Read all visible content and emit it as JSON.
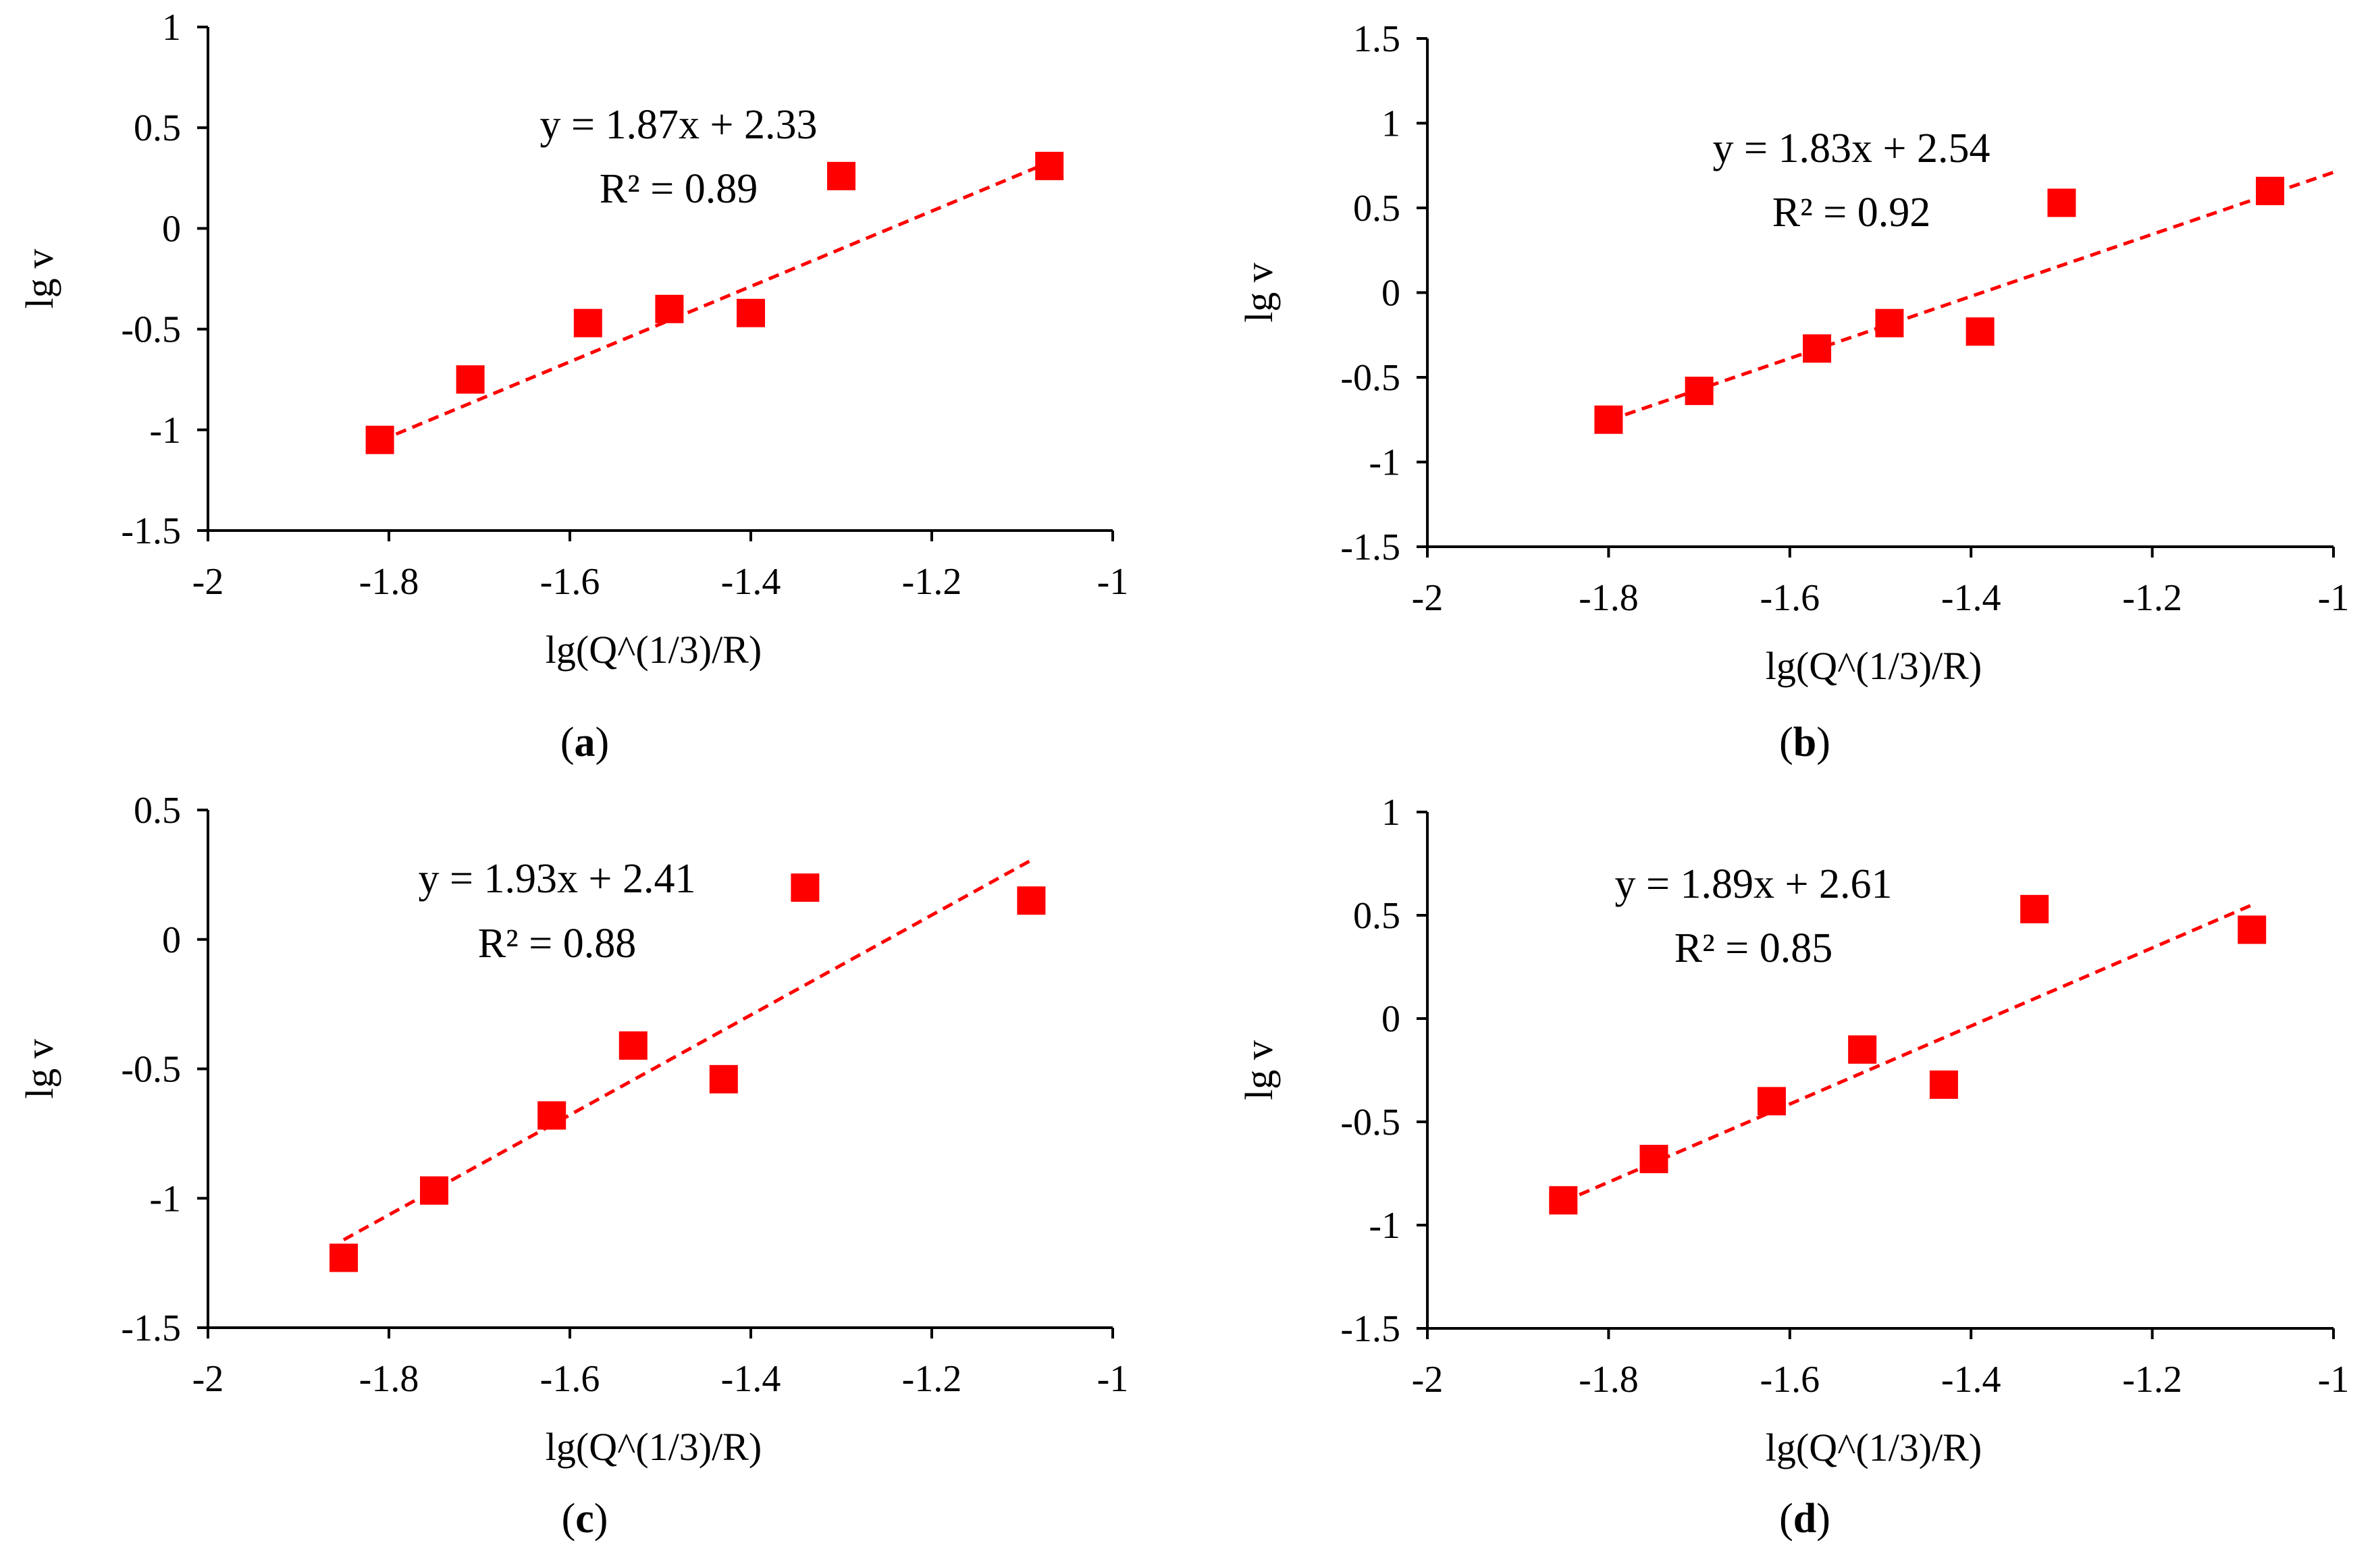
{
  "chart_data": [
    {
      "type": "scatter",
      "panel": "a",
      "xlabel": "lg(Q^(1/3)/R)",
      "ylabel": "lg v",
      "xlim": [
        -2,
        -1
      ],
      "ylim": [
        -1.5,
        1
      ],
      "xticks": [
        -2,
        -1.8,
        -1.6,
        -1.4,
        -1.2,
        -1
      ],
      "yticks": [
        -1.5,
        -1,
        -0.5,
        0,
        0.5,
        1
      ],
      "xtick_labels": [
        "-2",
        "-1.8",
        "-1.6",
        "-1.4",
        "-1.2",
        "-1"
      ],
      "ytick_labels": [
        "-1.5",
        "-1",
        "-0.5",
        "0",
        "0.5",
        "1"
      ],
      "points": [
        {
          "x": -1.81,
          "y": -1.05
        },
        {
          "x": -1.71,
          "y": -0.75
        },
        {
          "x": -1.58,
          "y": -0.47
        },
        {
          "x": -1.49,
          "y": -0.4
        },
        {
          "x": -1.4,
          "y": -0.42
        },
        {
          "x": -1.3,
          "y": 0.26
        },
        {
          "x": -1.07,
          "y": 0.31
        }
      ],
      "trendline": {
        "slope": 1.87,
        "intercept": 2.33,
        "x_range": [
          -1.81,
          -1.08
        ]
      },
      "equation": "y = 1.87x + 2.33",
      "r_squared": "R² = 0.89",
      "caption_open": "(",
      "caption_letter": "a",
      "caption_close": ")"
    },
    {
      "type": "scatter",
      "panel": "b",
      "xlabel": "lg(Q^(1/3)/R)",
      "ylabel": "lg v",
      "xlim": [
        -2,
        -1
      ],
      "ylim": [
        -1.5,
        1.5
      ],
      "xticks": [
        -2,
        -1.8,
        -1.6,
        -1.4,
        -1.2,
        -1
      ],
      "yticks": [
        -1.5,
        -1,
        -0.5,
        0,
        0.5,
        1,
        1.5
      ],
      "xtick_labels": [
        "-2",
        "-1.8",
        "-1.6",
        "-1.4",
        "-1.2",
        "-1"
      ],
      "ytick_labels": [
        "-1.5",
        "-1",
        "-0.5",
        "0",
        "0.5",
        "1",
        "1.5"
      ],
      "points": [
        {
          "x": -1.8,
          "y": -0.75
        },
        {
          "x": -1.7,
          "y": -0.58
        },
        {
          "x": -1.57,
          "y": -0.33
        },
        {
          "x": -1.49,
          "y": -0.18
        },
        {
          "x": -1.39,
          "y": -0.23
        },
        {
          "x": -1.3,
          "y": 0.53
        },
        {
          "x": -1.07,
          "y": 0.6
        }
      ],
      "trendline": {
        "slope": 1.83,
        "intercept": 2.54,
        "x_range": [
          -1.8,
          -1.0
        ]
      },
      "equation": "y = 1.83x + 2.54",
      "r_squared": "R² = 0.92",
      "caption_open": "(",
      "caption_letter": "b",
      "caption_close": ")"
    },
    {
      "type": "scatter",
      "panel": "c",
      "xlabel": "lg(Q^(1/3)/R)",
      "ylabel": "lg v",
      "xlim": [
        -2,
        -1
      ],
      "ylim": [
        -1.5,
        0.5
      ],
      "xticks": [
        -2,
        -1.8,
        -1.6,
        -1.4,
        -1.2,
        -1
      ],
      "yticks": [
        -1.5,
        -1,
        -0.5,
        0,
        0.5
      ],
      "xtick_labels": [
        "-2",
        "-1.8",
        "-1.6",
        "-1.4",
        "-1.2",
        "-1"
      ],
      "ytick_labels": [
        "-1.5",
        "-1",
        "-0.5",
        "0",
        "0.5"
      ],
      "points": [
        {
          "x": -1.85,
          "y": -1.23
        },
        {
          "x": -1.75,
          "y": -0.97
        },
        {
          "x": -1.62,
          "y": -0.68
        },
        {
          "x": -1.53,
          "y": -0.41
        },
        {
          "x": -1.43,
          "y": -0.54
        },
        {
          "x": -1.34,
          "y": 0.2
        },
        {
          "x": -1.09,
          "y": 0.15
        }
      ],
      "trendline": {
        "slope": 1.93,
        "intercept": 2.41,
        "x_range": [
          -1.85,
          -1.09
        ]
      },
      "equation": "y = 1.93x + 2.41",
      "r_squared": "R² = 0.88",
      "caption_open": "(",
      "caption_letter": "c",
      "caption_close": ")"
    },
    {
      "type": "scatter",
      "panel": "d",
      "xlabel": "lg(Q^(1/3)/R)",
      "ylabel": "lg v",
      "xlim": [
        -2,
        -1
      ],
      "ylim": [
        -1.5,
        1
      ],
      "xticks": [
        -2,
        -1.8,
        -1.6,
        -1.4,
        -1.2,
        -1
      ],
      "yticks": [
        -1.5,
        -1,
        -0.5,
        0,
        0.5,
        1
      ],
      "xtick_labels": [
        "-2",
        "-1.8",
        "-1.6",
        "-1.4",
        "-1.2",
        "-1"
      ],
      "ytick_labels": [
        "-1.5",
        "-1",
        "-0.5",
        "0",
        "0.5",
        "1"
      ],
      "points": [
        {
          "x": -1.85,
          "y": -0.88
        },
        {
          "x": -1.75,
          "y": -0.68
        },
        {
          "x": -1.62,
          "y": -0.4
        },
        {
          "x": -1.52,
          "y": -0.15
        },
        {
          "x": -1.43,
          "y": -0.32
        },
        {
          "x": -1.33,
          "y": 0.53
        },
        {
          "x": -1.09,
          "y": 0.43
        }
      ],
      "trendline": {
        "slope": 1.89,
        "intercept": 2.61,
        "x_range": [
          -1.85,
          -1.09
        ]
      },
      "equation": "y = 1.89x + 2.61",
      "r_squared": "R² = 0.85",
      "caption_open": "(",
      "caption_letter": "d",
      "caption_close": ")"
    }
  ],
  "colors": {
    "marker": "#ff0000",
    "trendline": "#ff0000",
    "axis": "#000000"
  }
}
